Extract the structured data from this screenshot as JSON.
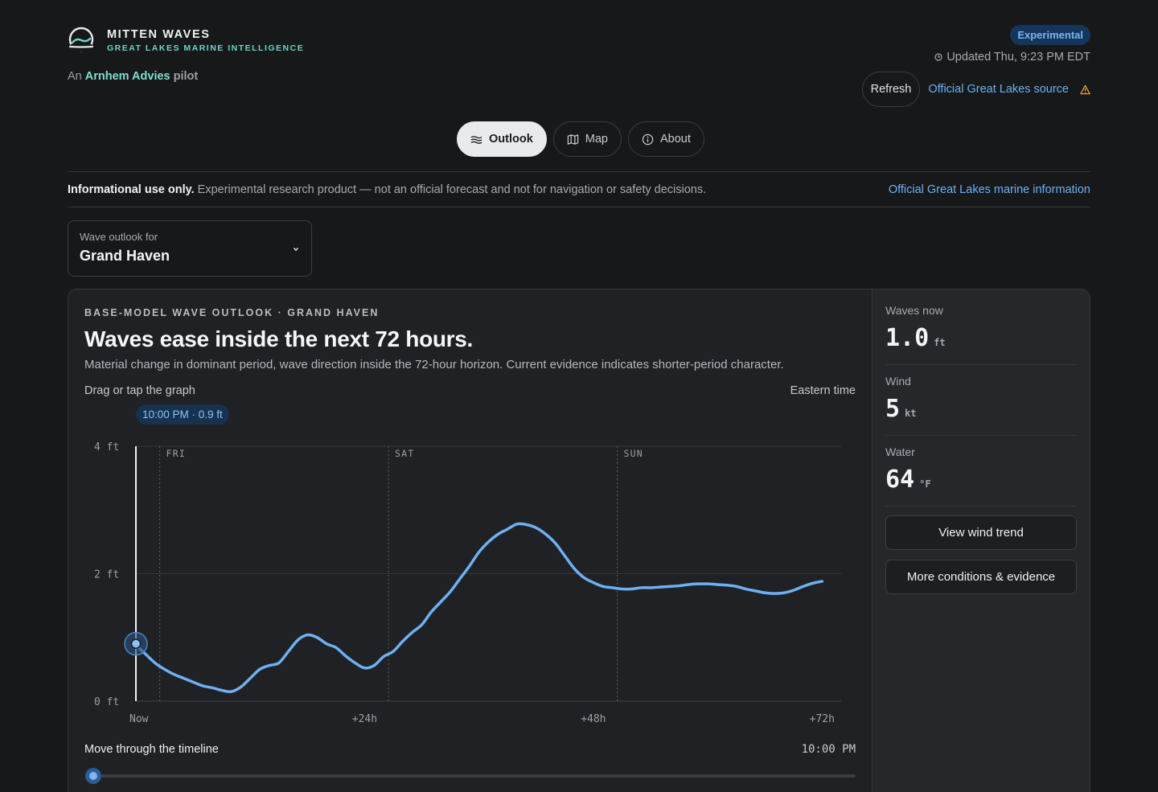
{
  "brand": {
    "name": "MITTEN WAVES",
    "tagline": "GREAT LAKES MARINE INTELLIGENCE",
    "pilot_prefix": "An",
    "pilot_name": "Arnhem Advies",
    "pilot_suffix": "pilot"
  },
  "header": {
    "badge": "Experimental",
    "updated": "Updated Thu, 9:23 PM EDT",
    "refresh_label": "Refresh",
    "official_link": "Official Great Lakes source"
  },
  "tabs": [
    {
      "label": "Outlook",
      "icon": "waves-icon",
      "active": true
    },
    {
      "label": "Map",
      "icon": "map-icon",
      "active": false
    },
    {
      "label": "About",
      "icon": "info-icon",
      "active": false
    }
  ],
  "disclaimer": {
    "strong": "Informational use only.",
    "text": "Experimental research product — not an official forecast and not for navigation or safety decisions.",
    "link": "Official Great Lakes marine information"
  },
  "location": {
    "label": "Wave outlook for",
    "value": "Grand Haven"
  },
  "outlook": {
    "eyebrow": "BASE-MODEL WAVE OUTLOOK · GRAND HAVEN",
    "headline": "Waves ease inside the next 72 hours.",
    "description": "Material change in dominant period, wave direction inside the 72-hour horizon. Current evidence indicates shorter-period character.",
    "hint": "Drag or tap the graph",
    "timezone": "Eastern time",
    "tooltip": "10:00 PM · 0.9 ft",
    "timeline_label": "Move through the timeline",
    "timeline_time": "10:00 PM"
  },
  "chart_data": {
    "type": "line",
    "x_unit": "hours from now",
    "y_unit": "ft",
    "ylim": [
      0,
      4
    ],
    "xlim": [
      0,
      74
    ],
    "y_ticks": [
      {
        "value": 0,
        "label": "0 ft"
      },
      {
        "value": 2,
        "label": "2 ft"
      },
      {
        "value": 4,
        "label": "4 ft"
      }
    ],
    "x_ticks": [
      {
        "value": 0,
        "label": "Now"
      },
      {
        "value": 24,
        "label": "+24h"
      },
      {
        "value": 48,
        "label": "+48h"
      },
      {
        "value": 72,
        "label": "+72h"
      }
    ],
    "day_markers": [
      {
        "value": 2.5,
        "label": "FRI"
      },
      {
        "value": 26.5,
        "label": "SAT"
      },
      {
        "value": 50.5,
        "label": "SUN"
      }
    ],
    "selected": {
      "x": 0,
      "y": 0.9
    },
    "grid": true,
    "series": [
      {
        "color": "#6fb0f2",
        "points": [
          [
            0,
            0.88
          ],
          [
            1,
            0.74
          ],
          [
            2,
            0.6
          ],
          [
            3,
            0.5
          ],
          [
            4,
            0.42
          ],
          [
            5,
            0.36
          ],
          [
            6,
            0.3
          ],
          [
            7,
            0.24
          ],
          [
            8,
            0.21
          ],
          [
            9,
            0.17
          ],
          [
            10,
            0.15
          ],
          [
            11,
            0.22
          ],
          [
            12,
            0.36
          ],
          [
            13,
            0.5
          ],
          [
            14,
            0.56
          ],
          [
            15,
            0.6
          ],
          [
            16,
            0.78
          ],
          [
            17,
            0.96
          ],
          [
            18,
            1.04
          ],
          [
            19,
            1.0
          ],
          [
            20,
            0.9
          ],
          [
            21,
            0.84
          ],
          [
            22,
            0.71
          ],
          [
            23,
            0.6
          ],
          [
            24,
            0.52
          ],
          [
            25,
            0.56
          ],
          [
            26,
            0.7
          ],
          [
            27,
            0.78
          ],
          [
            28,
            0.94
          ],
          [
            29,
            1.08
          ],
          [
            30,
            1.2
          ],
          [
            31,
            1.4
          ],
          [
            32,
            1.56
          ],
          [
            33,
            1.72
          ],
          [
            34,
            1.92
          ],
          [
            35,
            2.12
          ],
          [
            36,
            2.34
          ],
          [
            37,
            2.5
          ],
          [
            38,
            2.62
          ],
          [
            39,
            2.7
          ],
          [
            40,
            2.78
          ],
          [
            41,
            2.77
          ],
          [
            42,
            2.72
          ],
          [
            43,
            2.62
          ],
          [
            44,
            2.48
          ],
          [
            45,
            2.28
          ],
          [
            46,
            2.08
          ],
          [
            47,
            1.94
          ],
          [
            48,
            1.86
          ],
          [
            49,
            1.8
          ],
          [
            50,
            1.78
          ],
          [
            51,
            1.76
          ],
          [
            52,
            1.76
          ],
          [
            53,
            1.78
          ],
          [
            54,
            1.78
          ],
          [
            55,
            1.79
          ],
          [
            56,
            1.8
          ],
          [
            57,
            1.81
          ],
          [
            58,
            1.83
          ],
          [
            59,
            1.84
          ],
          [
            60,
            1.84
          ],
          [
            61,
            1.83
          ],
          [
            62,
            1.82
          ],
          [
            63,
            1.8
          ],
          [
            64,
            1.76
          ],
          [
            65,
            1.73
          ],
          [
            66,
            1.7
          ],
          [
            67,
            1.69
          ],
          [
            68,
            1.7
          ],
          [
            69,
            1.74
          ],
          [
            70,
            1.8
          ],
          [
            71,
            1.85
          ],
          [
            72,
            1.88
          ]
        ]
      }
    ]
  },
  "side": {
    "waves_label": "Waves now",
    "waves_value": "1.0",
    "waves_unit": "ft",
    "wind_label": "Wind",
    "wind_value": "5",
    "wind_unit": "kt",
    "water_label": "Water",
    "water_value": "64",
    "water_unit": "°F",
    "btn_wind": "View wind trend",
    "btn_more": "More conditions & evidence"
  },
  "colors": {
    "accent": "#6fb0f2",
    "brand_teal": "#6ed3c6",
    "warning": "#e0a83a"
  }
}
